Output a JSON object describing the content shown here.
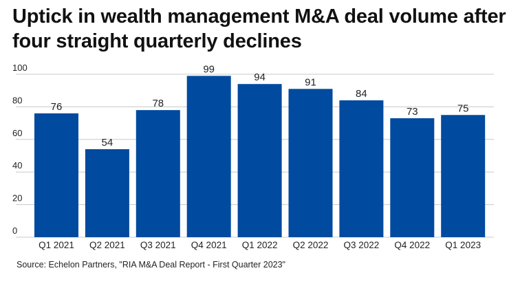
{
  "title": "Uptick in wealth management M&A deal volume after four straight quarterly declines",
  "source": "Source: Echelon Partners, \"RIA M&A Deal Report - First Quarter 2023\"",
  "chart_data": {
    "type": "bar",
    "title": "Uptick in wealth management M&A deal volume after four straight quarterly declines",
    "categories": [
      "Q1 2021",
      "Q2 2021",
      "Q3 2021",
      "Q4 2021",
      "Q1 2022",
      "Q2 2022",
      "Q3 2022",
      "Q4 2022",
      "Q1 2023"
    ],
    "values": [
      76,
      54,
      78,
      99,
      94,
      91,
      84,
      73,
      75
    ],
    "ylim": [
      0,
      100
    ],
    "yticks": [
      0,
      20,
      40,
      60,
      80,
      100
    ],
    "grid": true,
    "data_labels": true,
    "bar_color": "#004a9f",
    "grid_color": "#c8c8c8"
  }
}
